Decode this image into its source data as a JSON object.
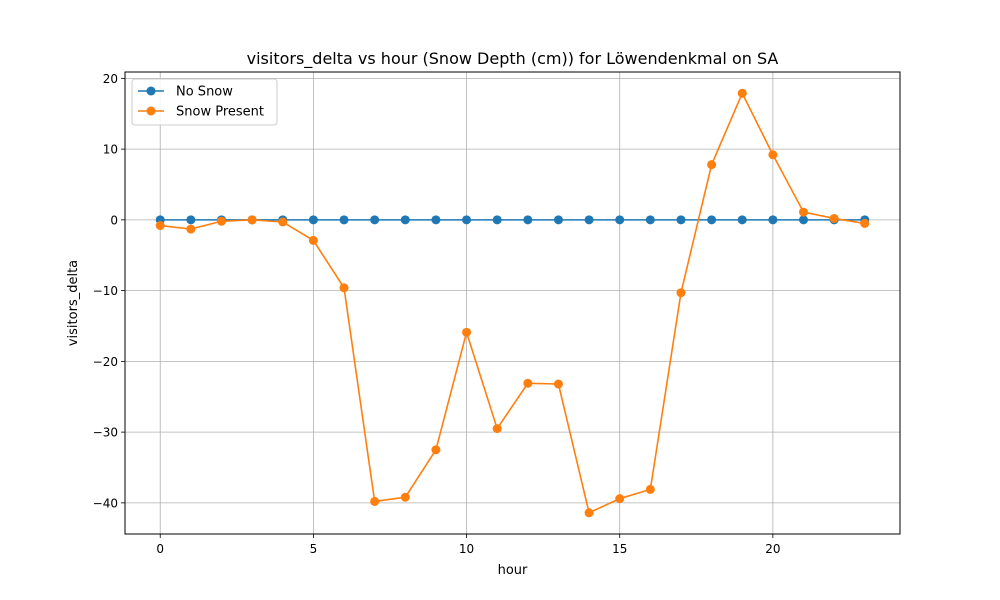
{
  "chart_data": {
    "type": "line",
    "title": "visitors_delta vs hour (Snow Depth (cm)) for Löwendenkmal on SA",
    "xlabel": "hour",
    "ylabel": "visitors_delta",
    "xlim": [
      -1.15,
      24.15
    ],
    "ylim": [
      -44.4,
      20.9
    ],
    "xticks": [
      0,
      5,
      10,
      15,
      20
    ],
    "yticks": [
      -40,
      -30,
      -20,
      -10,
      0,
      10,
      20
    ],
    "xtick_labels": [
      "0",
      "5",
      "10",
      "15",
      "20"
    ],
    "ytick_labels": [
      "−40",
      "−30",
      "−20",
      "−10",
      "0",
      "10",
      "20"
    ],
    "grid": true,
    "legend_position": "top-left",
    "x": [
      0,
      1,
      2,
      3,
      4,
      5,
      6,
      7,
      8,
      9,
      10,
      11,
      12,
      13,
      14,
      15,
      16,
      17,
      18,
      19,
      20,
      21,
      22,
      23
    ],
    "series": [
      {
        "name": "No Snow",
        "color": "#1f77b4",
        "marker": "circle",
        "values": [
          0,
          0,
          0,
          0,
          0,
          0,
          0,
          0,
          0,
          0,
          0,
          0,
          0,
          0,
          0,
          0,
          0,
          0,
          0,
          0,
          0,
          0,
          0,
          0
        ]
      },
      {
        "name": "Snow Present",
        "color": "#ff7f0e",
        "marker": "circle",
        "values": [
          -0.8,
          -1.3,
          -0.2,
          0.0,
          -0.3,
          -2.9,
          -9.6,
          -39.8,
          -39.2,
          -32.5,
          -15.9,
          -29.5,
          -23.1,
          -23.2,
          -41.4,
          -39.4,
          -38.1,
          -10.3,
          7.8,
          17.9,
          9.2,
          1.1,
          0.2,
          -0.5
        ]
      }
    ]
  }
}
